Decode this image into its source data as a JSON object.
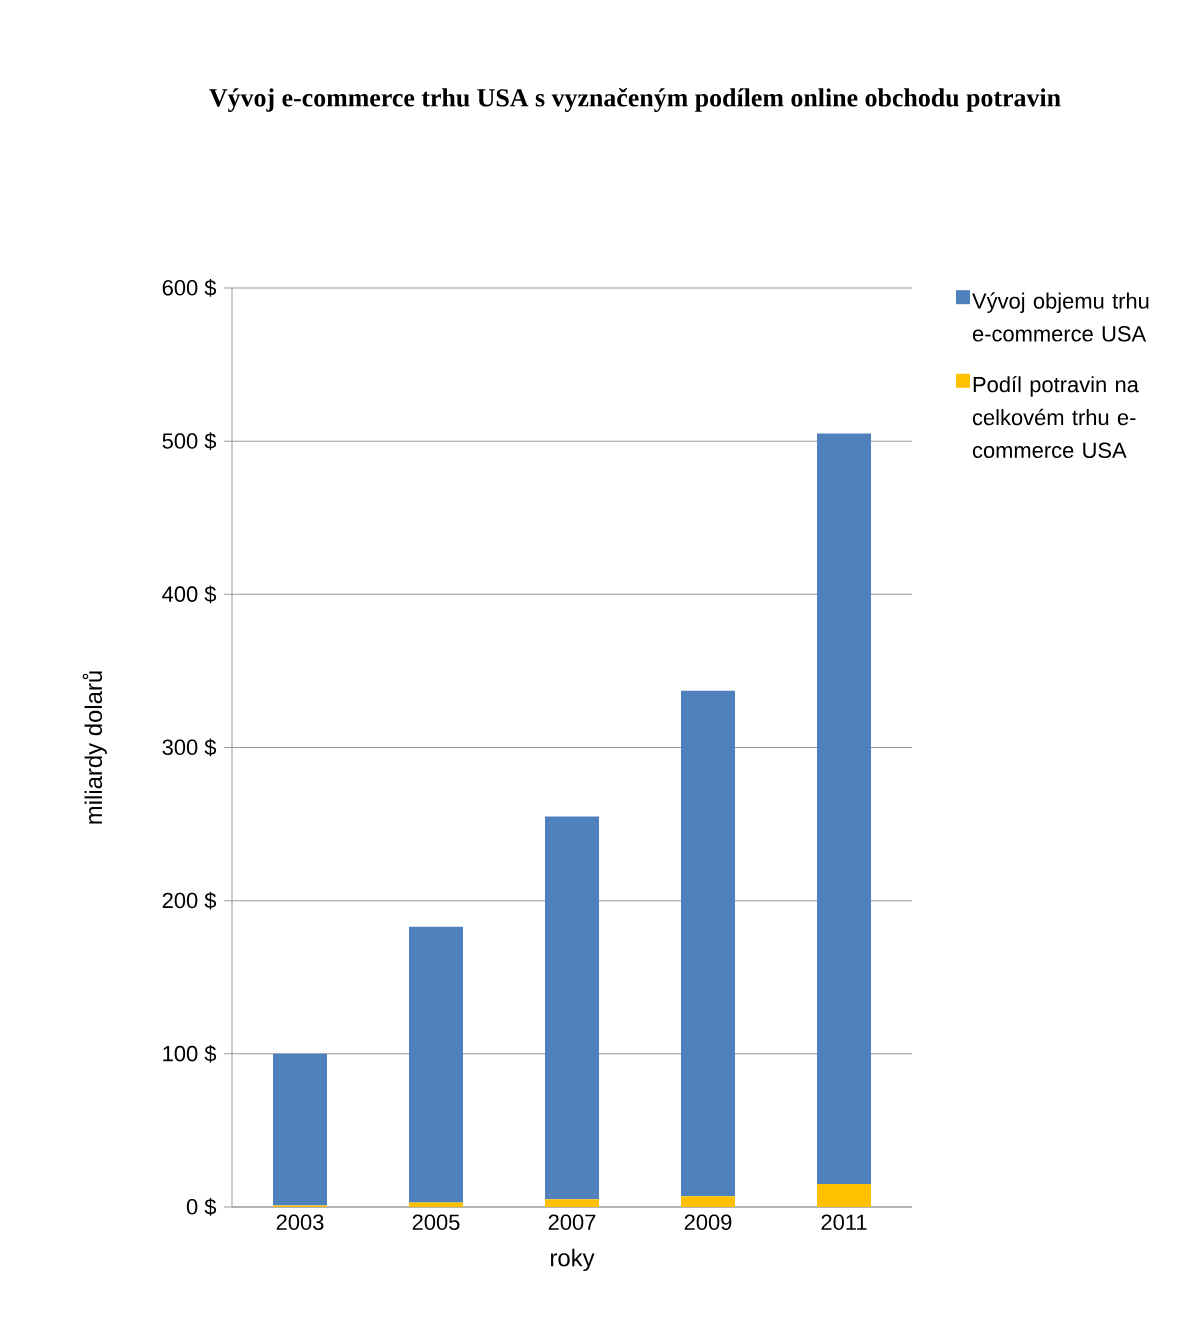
{
  "chart_data": {
    "type": "bar",
    "title": "Vývoj e-commerce trhu USA s vyznačeným podílem online obchodu potravin",
    "xlabel": "roky",
    "ylabel": "miliardy dolarů",
    "categories": [
      "2003",
      "2005",
      "2007",
      "2009",
      "2011"
    ],
    "stacked": true,
    "series": [
      {
        "name": "Podíl potravin na celkovém trhu e-commerce USA",
        "color": "#ffc000",
        "values": [
          1,
          3,
          5,
          7,
          15
        ]
      },
      {
        "name": "Vývoj objemu trhu e-commerce USA",
        "color": "#4f81bd",
        "values": [
          99,
          180,
          250,
          330,
          490
        ]
      }
    ],
    "ylim": [
      0,
      600
    ],
    "yticks": [
      {
        "value": 0,
        "label": "0 $"
      },
      {
        "value": 100,
        "label": "100 $"
      },
      {
        "value": 200,
        "label": "200 $"
      },
      {
        "value": 300,
        "label": "300 $"
      },
      {
        "value": 400,
        "label": "400 $"
      },
      {
        "value": 500,
        "label": "500 $"
      },
      {
        "value": 600,
        "label": "600 $"
      }
    ],
    "grid": "y",
    "legend": "top right"
  }
}
